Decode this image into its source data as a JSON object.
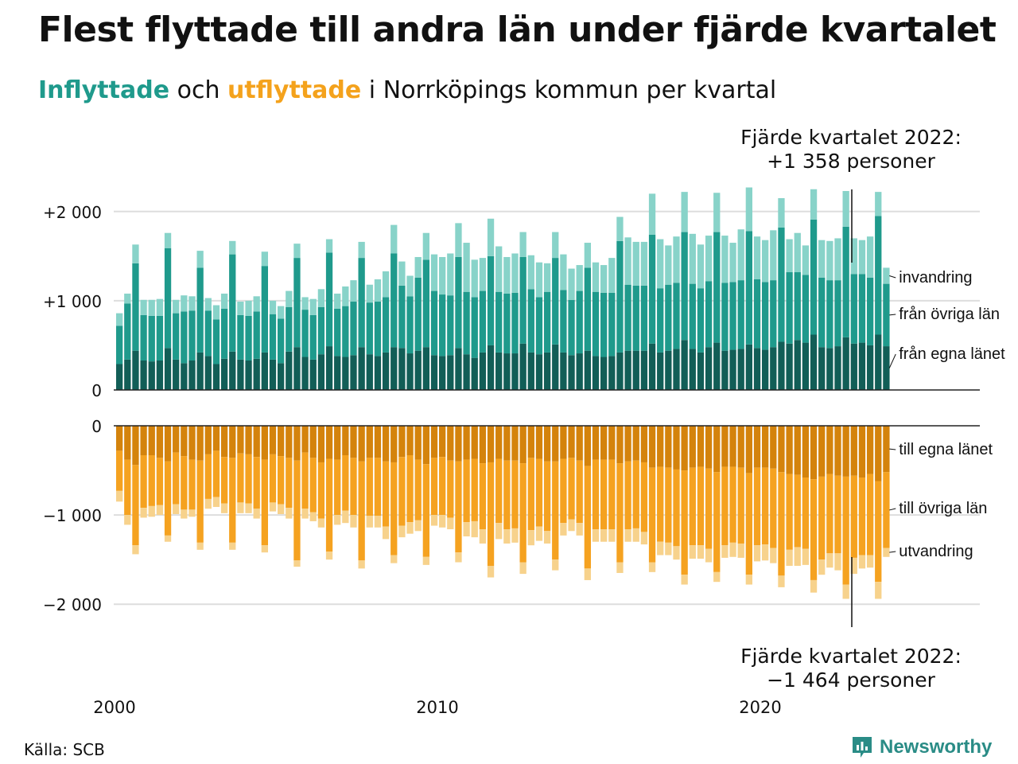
{
  "title": "Flest flyttade till andra län under fjärde kvartalet",
  "subtitle": {
    "in_word": "Inflyttade",
    "and": " och ",
    "out_word": "utflyttade",
    "rest": " i Norrköpings kommun per kvartal"
  },
  "annotation_top": {
    "line1": "Fjärde kvartalet 2022:",
    "line2": "+1 358 personer"
  },
  "annotation_bottom": {
    "line1": "Fjärde kvartalet 2022:",
    "line2": "−1 464 personer"
  },
  "source": "Källa: SCB",
  "brand": "Newsworthy",
  "colors": {
    "in_own": "#125e57",
    "in_other": "#1f9a8c",
    "in_immig": "#88d3c9",
    "out_own": "#d4830c",
    "out_other": "#f5a220",
    "out_emig": "#f7d28c",
    "grid": "#dddddd",
    "axis": "#222222"
  },
  "chart_data": [
    {
      "type": "bar",
      "stacked": true,
      "name_text": "Inflyttade",
      "x_start": "2000 Q1",
      "x_ticks": [
        "2000",
        "2010",
        "2020"
      ],
      "y_ticks": [
        "+2 000",
        "+1 000",
        "0"
      ],
      "y_tick_values": [
        2000,
        1000,
        0
      ],
      "ylim": [
        0,
        2250
      ],
      "grid": true,
      "series": [
        {
          "name": "från egna länet",
          "values": [
            290,
            340,
            440,
            330,
            320,
            330,
            470,
            340,
            300,
            330,
            420,
            380,
            290,
            350,
            430,
            340,
            330,
            350,
            420,
            340,
            300,
            430,
            480,
            370,
            340,
            400,
            490,
            380,
            370,
            390,
            480,
            400,
            380,
            420,
            480,
            470,
            410,
            440,
            480,
            390,
            380,
            390,
            470,
            400,
            360,
            420,
            500,
            420,
            410,
            410,
            520,
            420,
            400,
            420,
            510,
            420,
            390,
            410,
            440,
            380,
            370,
            380,
            420,
            440,
            440,
            440,
            520,
            420,
            440,
            460,
            560,
            460,
            420,
            480,
            530,
            440,
            450,
            460,
            510,
            470,
            450,
            480,
            540,
            520,
            560,
            530,
            620,
            480,
            470,
            490,
            590,
            520,
            530,
            500,
            620,
            490
          ]
        },
        {
          "name": "från övriga län",
          "values": [
            430,
            630,
            980,
            510,
            510,
            500,
            1120,
            520,
            580,
            560,
            950,
            510,
            500,
            560,
            1090,
            500,
            500,
            530,
            970,
            510,
            500,
            500,
            1000,
            530,
            500,
            530,
            1050,
            530,
            570,
            600,
            1000,
            580,
            610,
            620,
            1050,
            700,
            640,
            820,
            980,
            720,
            690,
            670,
            1020,
            700,
            680,
            690,
            1000,
            680,
            670,
            680,
            970,
            710,
            640,
            680,
            970,
            700,
            620,
            700,
            930,
            720,
            720,
            710,
            1250,
            740,
            730,
            730,
            1220,
            720,
            740,
            740,
            1210,
            730,
            720,
            740,
            1240,
            760,
            760,
            770,
            1270,
            770,
            760,
            750,
            1280,
            800,
            760,
            760,
            1290,
            780,
            760,
            740,
            1240,
            780,
            770,
            760,
            1330,
            700
          ]
        },
        {
          "name": "invandring",
          "values": [
            140,
            110,
            210,
            170,
            180,
            190,
            170,
            150,
            180,
            160,
            190,
            140,
            160,
            170,
            150,
            150,
            170,
            170,
            160,
            150,
            140,
            180,
            160,
            140,
            180,
            200,
            150,
            170,
            220,
            240,
            180,
            200,
            250,
            290,
            320,
            270,
            230,
            230,
            300,
            410,
            420,
            470,
            380,
            550,
            420,
            370,
            420,
            510,
            410,
            440,
            280,
            380,
            390,
            320,
            290,
            400,
            350,
            290,
            280,
            330,
            310,
            390,
            270,
            530,
            490,
            490,
            460,
            550,
            440,
            520,
            450,
            560,
            490,
            510,
            440,
            530,
            440,
            570,
            490,
            480,
            470,
            560,
            330,
            370,
            440,
            330,
            340,
            420,
            440,
            470,
            400,
            400,
            380,
            460,
            270,
            180
          ]
        }
      ]
    },
    {
      "type": "bar",
      "stacked": true,
      "name_text": "Utflyttade",
      "x_start": "2000 Q1",
      "x_ticks": [
        "2000",
        "2010",
        "2020"
      ],
      "y_ticks": [
        "0",
        "−1 000",
        "−2 000"
      ],
      "y_tick_values": [
        0,
        -1000,
        -2000
      ],
      "ylim": [
        -2250,
        0
      ],
      "grid": true,
      "series": [
        {
          "name": "till egna länet",
          "values": [
            -280,
            -380,
            -440,
            -330,
            -330,
            -360,
            -400,
            -300,
            -340,
            -380,
            -390,
            -320,
            -280,
            -350,
            -360,
            -310,
            -320,
            -350,
            -380,
            -320,
            -340,
            -360,
            -390,
            -300,
            -360,
            -410,
            -370,
            -380,
            -330,
            -360,
            -400,
            -360,
            -360,
            -400,
            -410,
            -350,
            -330,
            -380,
            -430,
            -360,
            -350,
            -390,
            -400,
            -380,
            -370,
            -420,
            -410,
            -370,
            -390,
            -390,
            -420,
            -360,
            -370,
            -400,
            -400,
            -370,
            -360,
            -390,
            -450,
            -380,
            -380,
            -380,
            -420,
            -400,
            -390,
            -410,
            -470,
            -460,
            -470,
            -490,
            -500,
            -470,
            -460,
            -480,
            -520,
            -460,
            -460,
            -470,
            -530,
            -470,
            -470,
            -480,
            -520,
            -540,
            -550,
            -580,
            -600,
            -570,
            -540,
            -560,
            -570,
            -560,
            -580,
            -540,
            -620,
            -520
          ]
        },
        {
          "name": "till övriga län",
          "values": [
            -450,
            -620,
            -900,
            -590,
            -570,
            -530,
            -830,
            -580,
            -600,
            -560,
            -920,
            -500,
            -520,
            -520,
            -950,
            -550,
            -550,
            -580,
            -960,
            -540,
            -540,
            -560,
            -1120,
            -630,
            -610,
            -630,
            -1040,
            -620,
            -620,
            -640,
            -1110,
            -650,
            -650,
            -730,
            -1040,
            -770,
            -750,
            -680,
            -1040,
            -640,
            -650,
            -640,
            -1020,
            -700,
            -700,
            -740,
            -1160,
            -720,
            -770,
            -760,
            -1110,
            -810,
            -760,
            -780,
            -1100,
            -720,
            -690,
            -700,
            -1150,
            -780,
            -780,
            -780,
            -1110,
            -760,
            -760,
            -780,
            -1060,
            -840,
            -840,
            -860,
            -1170,
            -870,
            -880,
            -900,
            -1120,
            -880,
            -850,
            -850,
            -1140,
            -870,
            -860,
            -890,
            -1160,
            -850,
            -810,
            -800,
            -1130,
            -930,
            -890,
            -870,
            -1210,
            -920,
            -870,
            -910,
            -1130,
            -850
          ]
        },
        {
          "name": "utvandring",
          "values": [
            -120,
            -110,
            -100,
            -110,
            -120,
            -110,
            -70,
            -110,
            -100,
            -80,
            -80,
            -110,
            -110,
            -110,
            -80,
            -120,
            -110,
            -110,
            -80,
            -100,
            -110,
            -120,
            -70,
            -110,
            -100,
            -100,
            -90,
            -110,
            -140,
            -140,
            -90,
            -130,
            -130,
            -140,
            -90,
            -130,
            -130,
            -120,
            -90,
            -120,
            -140,
            -130,
            -110,
            -160,
            -180,
            -160,
            -130,
            -180,
            -160,
            -160,
            -130,
            -170,
            -160,
            -140,
            -120,
            -140,
            -130,
            -140,
            -130,
            -140,
            -140,
            -140,
            -120,
            -140,
            -150,
            -140,
            -110,
            -150,
            -140,
            -150,
            -110,
            -150,
            -150,
            -150,
            -110,
            -140,
            -160,
            -160,
            -110,
            -180,
            -180,
            -170,
            -130,
            -180,
            -210,
            -180,
            -140,
            -170,
            -160,
            -190,
            -160,
            -180,
            -150,
            -140,
            -190,
            -100
          ]
        }
      ]
    }
  ]
}
